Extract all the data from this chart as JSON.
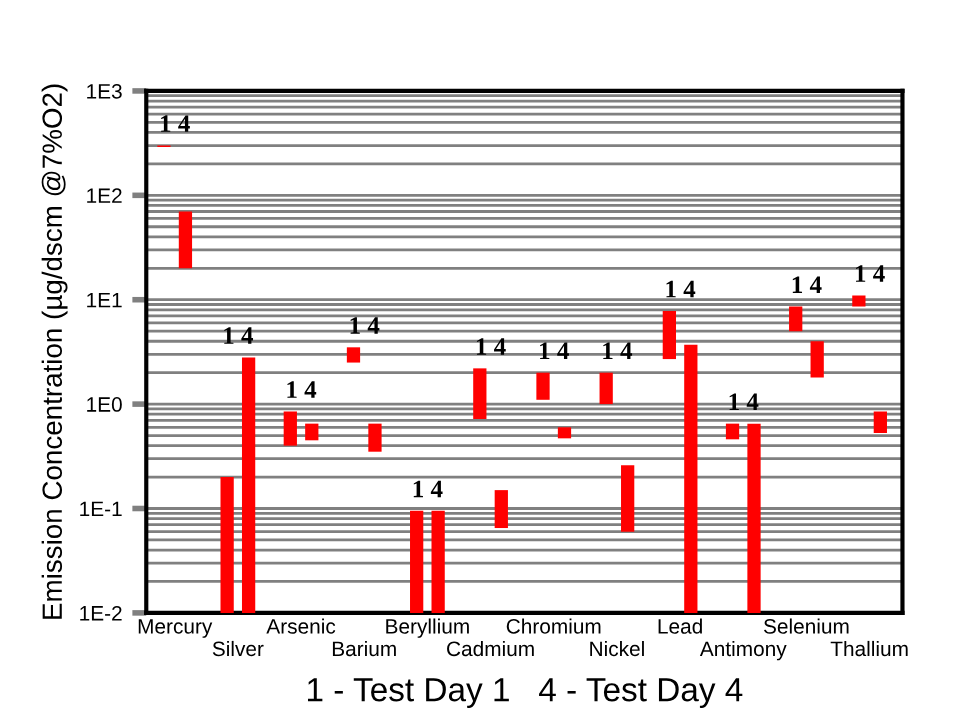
{
  "chart_data": {
    "type": "bar",
    "xlabel": "1 - Test Day 1   4 - Test Day 4",
    "ylabel": "Emission Concentration (µg/dscm @7%O2)",
    "categories": [
      "Mercury",
      "Silver",
      "Arsenic",
      "Barium",
      "Beryllium",
      "Cadmium",
      "Chromium",
      "Nickel",
      "Lead",
      "Antimony",
      "Selenium",
      "Thallium"
    ],
    "series": [
      {
        "color": "#ff0000",
        "base": [
          290,
          0.01,
          0.4,
          2.5,
          0.01,
          0.72,
          1.1,
          1.0,
          2.7,
          0.46,
          5.0,
          8.6
        ],
        "values": [
          10,
          0.19,
          0.45,
          1.0,
          0.085,
          1.48,
          0.9,
          1.0,
          5.1,
          0.19,
          3.6,
          2.4
        ]
      },
      {
        "color": "#ff0000",
        "base": [
          20,
          0.01,
          0.45,
          0.35,
          0.01,
          0.065,
          0.47,
          0.06,
          0.01,
          0.01,
          1.8,
          0.53
        ],
        "values": [
          50,
          2.79,
          0.2,
          0.3,
          0.085,
          0.085,
          0.13,
          0.2,
          3.69,
          0.64,
          2.2,
          0.32
        ]
      }
    ],
    "log": "y",
    "ylim": [
      0.01,
      1000
    ],
    "yticks": [
      {
        "value": 1000,
        "label": "1E3"
      },
      {
        "value": 100,
        "label": "1E2"
      },
      {
        "value": 10,
        "label": "1E1"
      },
      {
        "value": 1,
        "label": "1E0"
      },
      {
        "value": 0.1,
        "label": "1E-1"
      },
      {
        "value": 0.01,
        "label": "1E-2"
      }
    ],
    "grid": "y",
    "annotations": [
      {
        "text": "1 4",
        "x": "Mercury",
        "y": 300
      },
      {
        "text": "1 4",
        "x": "Silver",
        "y": 2.8
      },
      {
        "text": "1 4",
        "x": "Arsenic",
        "y": 0.85
      },
      {
        "text": "1 4",
        "x": "Barium",
        "y": 3.5
      },
      {
        "text": "1 4",
        "x": "Beryllium",
        "y": 0.095
      },
      {
        "text": "1 4",
        "x": "Cadmium",
        "y": 2.2
      },
      {
        "text": "1 4",
        "x": "Chromium",
        "y": 2.0
      },
      {
        "text": "1 4",
        "x": "Nickel",
        "y": 2.0
      },
      {
        "text": "1 4",
        "x": "Lead",
        "y": 7.8
      },
      {
        "text": "1 4",
        "x": "Antimony",
        "y": 0.65
      },
      {
        "text": "1 4",
        "x": "Selenium",
        "y": 8.6
      },
      {
        "text": "1 4",
        "x": "Thallium",
        "y": 11
      }
    ]
  }
}
